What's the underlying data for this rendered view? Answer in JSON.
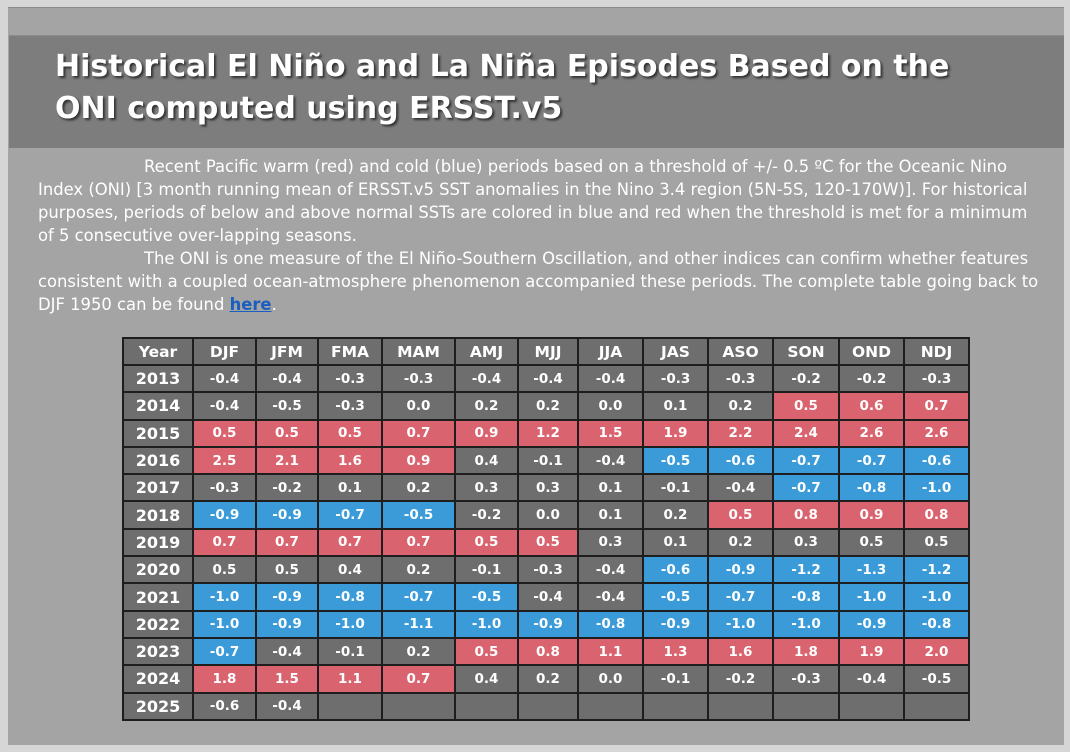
{
  "title": "Historical El Niño and La Niña Episodes Based on the ONI computed using ERSST.v5",
  "intro": {
    "paragraph1": "Recent Pacific warm (red) and cold (blue) periods based on a threshold of +/- 0.5 ºC for the Oceanic Nino Index (ONI) [3 month running mean of ERSST.v5 SST anomalies in the Nino 3.4 region (5N-5S, 120-170W)]. For historical purposes, periods of below and above normal SSTs are colored in blue and red when the threshold is met for a minimum of 5 consecutive over-lapping seasons.",
    "paragraph2_before_link": "The ONI is one measure of the El Niño-Southern Oscillation, and other indices can confirm whether features consistent with a coupled ocean-atmosphere phenomenon accompanied these periods. The complete table going back to DJF 1950 can be found ",
    "link_text": "here",
    "paragraph2_after_link": "."
  },
  "colors": {
    "warm": "#d9636e",
    "cold": "#3a9bd8",
    "neutral": "#6e6e6e",
    "link": "#1a5fc0"
  },
  "table": {
    "headers": [
      "Year",
      "DJF",
      "JFM",
      "FMA",
      "MAM",
      "AMJ",
      "MJJ",
      "JJA",
      "JAS",
      "ASO",
      "SON",
      "OND",
      "NDJ"
    ],
    "rows": [
      {
        "year": "2013",
        "values": [
          "-0.4",
          "-0.4",
          "-0.3",
          "-0.3",
          "-0.4",
          "-0.4",
          "-0.4",
          "-0.3",
          "-0.3",
          "-0.2",
          "-0.2",
          "-0.3"
        ],
        "status": [
          "n",
          "n",
          "n",
          "n",
          "n",
          "n",
          "n",
          "n",
          "n",
          "n",
          "n",
          "n"
        ]
      },
      {
        "year": "2014",
        "values": [
          "-0.4",
          "-0.5",
          "-0.3",
          "0.0",
          "0.2",
          "0.2",
          "0.0",
          "0.1",
          "0.2",
          "0.5",
          "0.6",
          "0.7"
        ],
        "status": [
          "n",
          "n",
          "n",
          "n",
          "n",
          "n",
          "n",
          "n",
          "n",
          "w",
          "w",
          "w"
        ]
      },
      {
        "year": "2015",
        "values": [
          "0.5",
          "0.5",
          "0.5",
          "0.7",
          "0.9",
          "1.2",
          "1.5",
          "1.9",
          "2.2",
          "2.4",
          "2.6",
          "2.6"
        ],
        "status": [
          "w",
          "w",
          "w",
          "w",
          "w",
          "w",
          "w",
          "w",
          "w",
          "w",
          "w",
          "w"
        ]
      },
      {
        "year": "2016",
        "values": [
          "2.5",
          "2.1",
          "1.6",
          "0.9",
          "0.4",
          "-0.1",
          "-0.4",
          "-0.5",
          "-0.6",
          "-0.7",
          "-0.7",
          "-0.6"
        ],
        "status": [
          "w",
          "w",
          "w",
          "w",
          "n",
          "n",
          "n",
          "c",
          "c",
          "c",
          "c",
          "c"
        ]
      },
      {
        "year": "2017",
        "values": [
          "-0.3",
          "-0.2",
          "0.1",
          "0.2",
          "0.3",
          "0.3",
          "0.1",
          "-0.1",
          "-0.4",
          "-0.7",
          "-0.8",
          "-1.0"
        ],
        "status": [
          "n",
          "n",
          "n",
          "n",
          "n",
          "n",
          "n",
          "n",
          "n",
          "c",
          "c",
          "c"
        ]
      },
      {
        "year": "2018",
        "values": [
          "-0.9",
          "-0.9",
          "-0.7",
          "-0.5",
          "-0.2",
          "0.0",
          "0.1",
          "0.2",
          "0.5",
          "0.8",
          "0.9",
          "0.8"
        ],
        "status": [
          "c",
          "c",
          "c",
          "c",
          "n",
          "n",
          "n",
          "n",
          "w",
          "w",
          "w",
          "w"
        ]
      },
      {
        "year": "2019",
        "values": [
          "0.7",
          "0.7",
          "0.7",
          "0.7",
          "0.5",
          "0.5",
          "0.3",
          "0.1",
          "0.2",
          "0.3",
          "0.5",
          "0.5"
        ],
        "status": [
          "w",
          "w",
          "w",
          "w",
          "w",
          "w",
          "n",
          "n",
          "n",
          "n",
          "n",
          "n"
        ]
      },
      {
        "year": "2020",
        "values": [
          "0.5",
          "0.5",
          "0.4",
          "0.2",
          "-0.1",
          "-0.3",
          "-0.4",
          "-0.6",
          "-0.9",
          "-1.2",
          "-1.3",
          "-1.2"
        ],
        "status": [
          "n",
          "n",
          "n",
          "n",
          "n",
          "n",
          "n",
          "c",
          "c",
          "c",
          "c",
          "c"
        ]
      },
      {
        "year": "2021",
        "values": [
          "-1.0",
          "-0.9",
          "-0.8",
          "-0.7",
          "-0.5",
          "-0.4",
          "-0.4",
          "-0.5",
          "-0.7",
          "-0.8",
          "-1.0",
          "-1.0"
        ],
        "status": [
          "c",
          "c",
          "c",
          "c",
          "c",
          "n",
          "n",
          "c",
          "c",
          "c",
          "c",
          "c"
        ]
      },
      {
        "year": "2022",
        "values": [
          "-1.0",
          "-0.9",
          "-1.0",
          "-1.1",
          "-1.0",
          "-0.9",
          "-0.8",
          "-0.9",
          "-1.0",
          "-1.0",
          "-0.9",
          "-0.8"
        ],
        "status": [
          "c",
          "c",
          "c",
          "c",
          "c",
          "c",
          "c",
          "c",
          "c",
          "c",
          "c",
          "c"
        ]
      },
      {
        "year": "2023",
        "values": [
          "-0.7",
          "-0.4",
          "-0.1",
          "0.2",
          "0.5",
          "0.8",
          "1.1",
          "1.3",
          "1.6",
          "1.8",
          "1.9",
          "2.0"
        ],
        "status": [
          "c",
          "n",
          "n",
          "n",
          "w",
          "w",
          "w",
          "w",
          "w",
          "w",
          "w",
          "w"
        ]
      },
      {
        "year": "2024",
        "values": [
          "1.8",
          "1.5",
          "1.1",
          "0.7",
          "0.4",
          "0.2",
          "0.0",
          "-0.1",
          "-0.2",
          "-0.3",
          "-0.4",
          "-0.5"
        ],
        "status": [
          "w",
          "w",
          "w",
          "w",
          "n",
          "n",
          "n",
          "n",
          "n",
          "n",
          "n",
          "n"
        ]
      },
      {
        "year": "2025",
        "values": [
          "-0.6",
          "-0.4",
          "",
          "",
          "",
          "",
          "",
          "",
          "",
          "",
          "",
          ""
        ],
        "status": [
          "n",
          "n",
          "n",
          "n",
          "n",
          "n",
          "n",
          "n",
          "n",
          "n",
          "n",
          "n"
        ]
      }
    ]
  }
}
